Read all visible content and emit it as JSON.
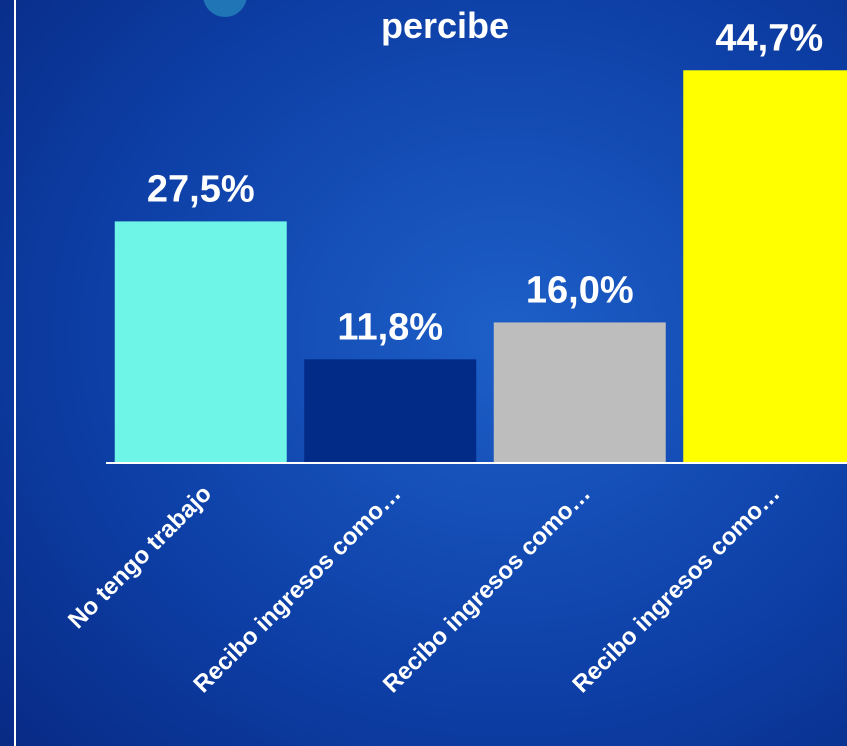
{
  "chart_data": {
    "type": "bar",
    "title": "percibe",
    "categories": [
      "No tengo trabajo",
      "Recibo ingresos como…",
      "Recibo ingresos como…",
      "Recibo ingresos como…"
    ],
    "values": [
      27.5,
      11.8,
      16.0,
      44.7
    ],
    "value_labels": [
      "27,5%",
      "11,8%",
      "16,0%",
      "44,7%"
    ],
    "colors": [
      "#6ff5e8",
      "#022a87",
      "#bdbdbd",
      "#ffff00"
    ],
    "ylim": [
      0,
      52.7
    ]
  }
}
